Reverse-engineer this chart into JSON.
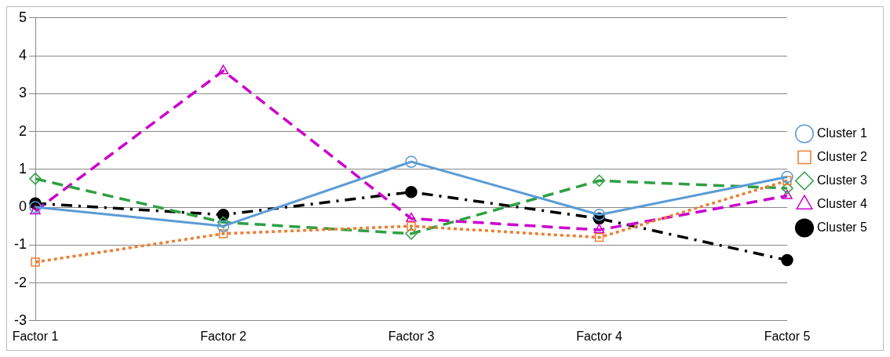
{
  "chart_data": {
    "type": "line",
    "categories": [
      "Factor 1",
      "Factor 2",
      "Factor 3",
      "Factor 4",
      "Factor 5"
    ],
    "series": [
      {
        "name": "Cluster 1",
        "color": "#5b9bd5",
        "marker": "circle",
        "line_style": "solid",
        "values": [
          0,
          -0.5,
          1.2,
          -0.2,
          0.8
        ]
      },
      {
        "name": "Cluster 2",
        "color": "#ed7d31",
        "marker": "square",
        "line_style": "dotted",
        "values": [
          -1.45,
          -0.7,
          -0.5,
          -0.8,
          0.7
        ]
      },
      {
        "name": "Cluster 3",
        "color": "#2ea043",
        "marker": "diamond",
        "line_style": "dashed",
        "values": [
          0.75,
          -0.4,
          -0.7,
          0.7,
          0.5
        ]
      },
      {
        "name": "Cluster 4",
        "color": "#cc00cc",
        "marker": "triangle",
        "line_style": "dashed",
        "values": [
          -0.1,
          3.6,
          -0.3,
          -0.6,
          0.3
        ]
      },
      {
        "name": "Cluster 5",
        "color": "#000000",
        "marker": "circle",
        "line_style": "dashdot",
        "values": [
          0.1,
          -0.2,
          0.4,
          -0.3,
          -1.4
        ]
      }
    ],
    "ylim": [
      -3,
      5
    ],
    "yticks": [
      -3,
      -2,
      -1,
      0,
      1,
      2,
      3,
      4,
      5
    ],
    "grid": "y",
    "legend": "right"
  }
}
